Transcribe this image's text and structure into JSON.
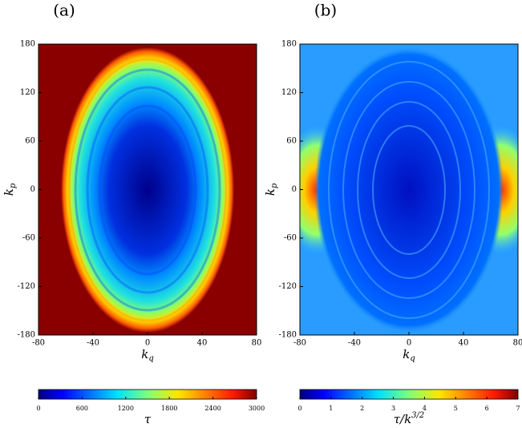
{
  "chart_data": [
    {
      "type": "heatmap",
      "panel_label": "(a)",
      "xlabel": {
        "text": "k",
        "subscript": "q"
      },
      "ylabel": {
        "text": "k",
        "subscript": "p"
      },
      "xlim": [
        -80,
        80
      ],
      "xticks": [
        -80,
        -40,
        0,
        40,
        80
      ],
      "ylim": [
        -180,
        180
      ],
      "yticks": [
        -180,
        -120,
        -60,
        0,
        60,
        120,
        180
      ],
      "colorbar": {
        "label": {
          "text": "τ"
        },
        "lim": [
          0,
          3000
        ],
        "ticks": [
          0,
          600,
          1200,
          1800,
          2400,
          3000
        ]
      }
    },
    {
      "type": "heatmap",
      "panel_label": "(b)",
      "xlabel": {
        "text": "k",
        "subscript": "q"
      },
      "ylabel": {
        "text": "k",
        "subscript": "p"
      },
      "xlim": [
        -80,
        80
      ],
      "xticks": [
        -80,
        -40,
        0,
        40,
        80
      ],
      "ylim": [
        -180,
        180
      ],
      "yticks": [
        -180,
        -120,
        -60,
        0,
        60,
        120,
        180
      ],
      "colorbar": {
        "label": {
          "text": "τ/k",
          "superscript": "3/2"
        },
        "lim": [
          0,
          7
        ],
        "ticks": [
          0,
          1,
          2,
          3,
          4,
          5,
          6,
          7
        ]
      }
    }
  ]
}
